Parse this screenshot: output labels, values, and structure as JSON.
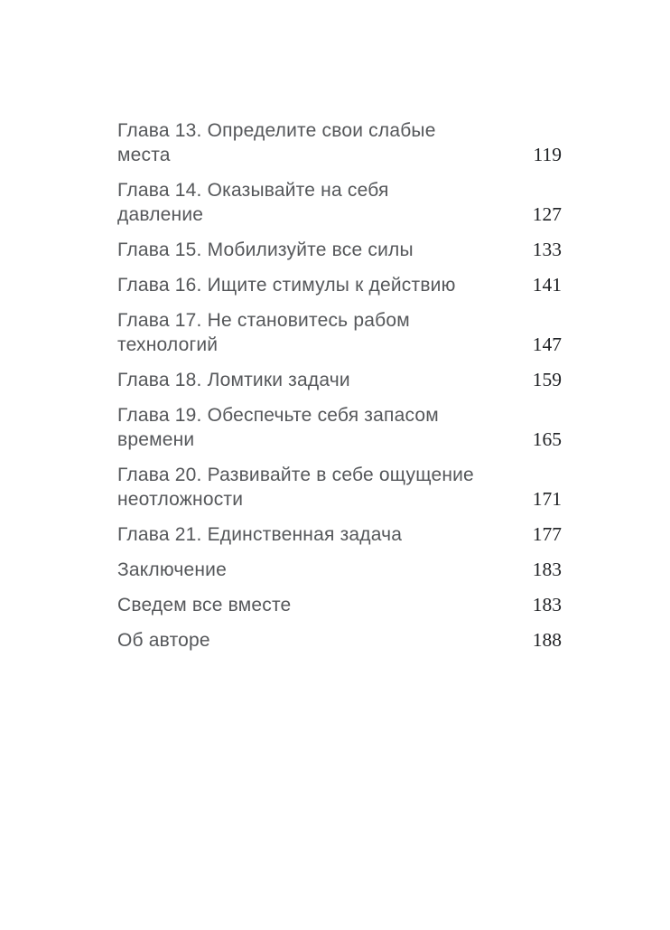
{
  "colors": {
    "page_background": "#ffffff",
    "title_text": "#55575a",
    "page_number_text": "#202225"
  },
  "toc": {
    "entries": [
      {
        "title": "Глава 13. Определите свои слабые места",
        "page": "119"
      },
      {
        "title": "Глава 14. Оказывайте на себя давление",
        "page": "127"
      },
      {
        "title": "Глава 15. Мобилизуйте все силы",
        "page": "133"
      },
      {
        "title": "Глава 16. Ищите стимулы к действию",
        "page": "141"
      },
      {
        "title": "Глава 17. Не становитесь рабом технологий",
        "page": "147"
      },
      {
        "title": "Глава 18. Ломтики задачи",
        "page": "159"
      },
      {
        "title": "Глава 19. Обеспечьте себя запасом времени",
        "page": "165"
      },
      {
        "title": "Глава 20. Развивайте в себе ощущение",
        "title_cont": "неотложности",
        "page": "171"
      },
      {
        "title": "Глава 21. Единственная задача",
        "page": "177"
      },
      {
        "title": "Заключение",
        "page": "183"
      },
      {
        "title": "Сведем все вместе",
        "page": "183"
      },
      {
        "title": "Об авторе",
        "page": "188"
      }
    ]
  }
}
